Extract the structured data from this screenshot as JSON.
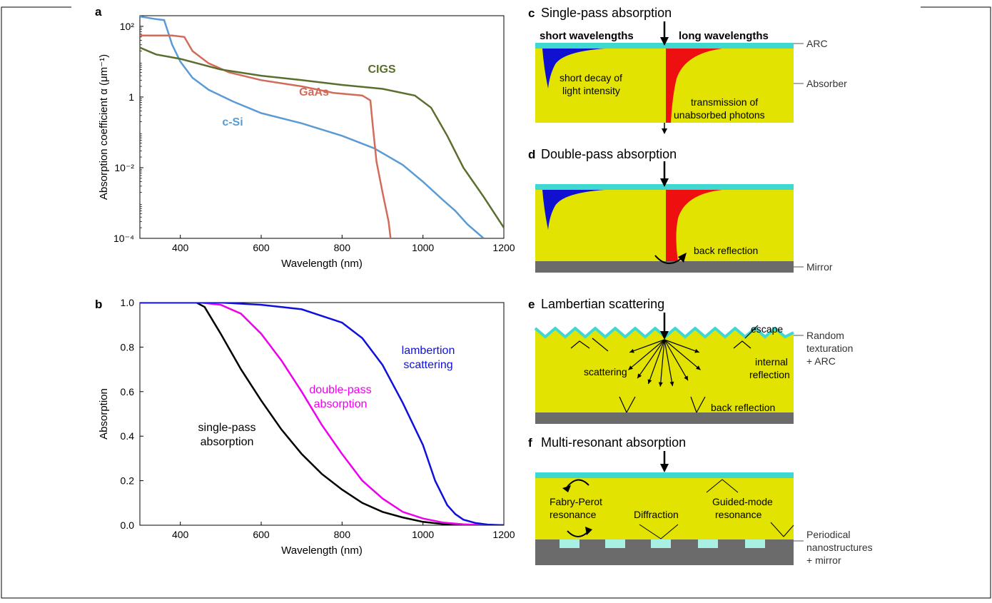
{
  "panels": {
    "a": {
      "letter": "a"
    },
    "b": {
      "letter": "b"
    },
    "c": {
      "letter": "c",
      "title": "Single-pass absorption",
      "short_label": "short wavelengths",
      "long_label": "long wavelengths",
      "decay_text": [
        "short decay of",
        "light intensity"
      ],
      "transmission_text": [
        "transmission of",
        "unabsorbed photons"
      ]
    },
    "d": {
      "letter": "d",
      "title": "Double-pass absorption",
      "back_reflection": "back reflection"
    },
    "e": {
      "letter": "e",
      "title": "Lambertian scattering",
      "escape": "escape",
      "scattering": "scattering",
      "internal_reflection": [
        "internal",
        "reflection"
      ],
      "back_reflection": "back reflection"
    },
    "f": {
      "letter": "f",
      "title": "Multi-resonant absorption",
      "fabry": [
        "Fabry-Perot",
        "resonance"
      ],
      "diffraction": "Diffraction",
      "guided": [
        "Guided-mode",
        "resonance"
      ]
    }
  },
  "side_labels": {
    "arc": "ARC",
    "absorber": "Absorber",
    "mirror": "Mirror",
    "random_texturation": [
      "Random",
      "texturation",
      "+ ARC"
    ],
    "periodical": [
      "Periodical",
      "nanostructures",
      "+ mirror"
    ]
  },
  "colors": {
    "absorber": "#e2e300",
    "arc": "#3fd8d0",
    "mirror": "#6b6b6b",
    "nano": "#a8f0e4",
    "short_wave": "#1010d0",
    "long_wave": "#ee1010"
  },
  "chart_data": [
    {
      "type": "line",
      "panel": "a",
      "xlabel": "Wavelength (nm)",
      "ylabel": "Absorption coefficient α (μm⁻¹)",
      "xlim": [
        300,
        1200
      ],
      "ylim": [
        0.0001,
        200
      ],
      "yscale": "log",
      "xticks": [
        400,
        600,
        800,
        1000,
        1200
      ],
      "yticks": [
        {
          "value": 100,
          "label": "10²"
        },
        {
          "value": 1,
          "label": "1"
        },
        {
          "value": 0.01,
          "label": "10⁻²"
        },
        {
          "value": 0.0001,
          "label": "10⁻⁴"
        }
      ],
      "series": [
        {
          "name": "c-Si",
          "color": "#5b9bd5",
          "x": [
            300,
            340,
            360,
            380,
            400,
            430,
            470,
            530,
            600,
            700,
            800,
            880,
            950,
            1000,
            1050,
            1080,
            1110,
            1150
          ],
          "y": [
            190,
            160,
            150,
            30,
            10,
            3.5,
            1.6,
            0.75,
            0.35,
            0.18,
            0.08,
            0.035,
            0.012,
            0.004,
            0.0012,
            0.0006,
            0.00025,
            0.0001
          ]
        },
        {
          "name": "GaAs",
          "color": "#d26b5a",
          "x": [
            300,
            380,
            410,
            430,
            470,
            520,
            600,
            700,
            780,
            850,
            870,
            875,
            885,
            900,
            915,
            920
          ],
          "y": [
            55,
            55,
            50,
            20,
            9,
            5,
            3,
            2,
            1.3,
            1.1,
            0.8,
            0.2,
            0.015,
            0.002,
            0.0003,
            0.0001
          ],
          "mark_shape": "line"
        },
        {
          "name": "CIGS",
          "color": "#5a6e2e",
          "x": [
            300,
            340,
            400,
            500,
            600,
            700,
            800,
            900,
            980,
            1020,
            1060,
            1100,
            1150,
            1200
          ],
          "y": [
            25,
            16,
            12,
            6,
            4,
            3,
            2.2,
            1.7,
            1.1,
            0.5,
            0.08,
            0.01,
            0.0015,
            0.0002
          ]
        }
      ]
    },
    {
      "type": "line",
      "panel": "b",
      "xlabel": "Wavelength (nm)",
      "ylabel": "Absorption",
      "xlim": [
        300,
        1200
      ],
      "ylim": [
        0,
        1
      ],
      "xticks": [
        400,
        600,
        800,
        1000,
        1200
      ],
      "yticks": [
        0.0,
        0.2,
        0.4,
        0.6,
        0.8,
        1.0
      ],
      "series": [
        {
          "name": "single-pass absorption",
          "color": "#000000",
          "x": [
            300,
            440,
            460,
            500,
            550,
            600,
            650,
            700,
            750,
            800,
            850,
            900,
            950,
            1000,
            1050,
            1100,
            1150,
            1200
          ],
          "y": [
            1.0,
            1.0,
            0.98,
            0.86,
            0.7,
            0.56,
            0.43,
            0.32,
            0.23,
            0.16,
            0.1,
            0.06,
            0.035,
            0.015,
            0.005,
            0.002,
            0.001,
            0.0
          ]
        },
        {
          "name": "double-pass absorption",
          "color": "#ee00ee",
          "x": [
            300,
            450,
            500,
            550,
            600,
            650,
            700,
            750,
            800,
            850,
            900,
            950,
            1000,
            1050,
            1100,
            1150,
            1200
          ],
          "y": [
            1.0,
            1.0,
            0.99,
            0.95,
            0.86,
            0.74,
            0.6,
            0.45,
            0.32,
            0.2,
            0.12,
            0.06,
            0.03,
            0.012,
            0.004,
            0.001,
            0.0
          ]
        },
        {
          "name": "lambertion scattering",
          "color": "#1010dd",
          "x": [
            300,
            500,
            600,
            700,
            800,
            850,
            900,
            950,
            1000,
            1030,
            1060,
            1080,
            1100,
            1130,
            1160,
            1200
          ],
          "y": [
            1.0,
            1.0,
            0.99,
            0.97,
            0.91,
            0.84,
            0.72,
            0.55,
            0.36,
            0.2,
            0.09,
            0.05,
            0.025,
            0.01,
            0.003,
            0.0
          ]
        }
      ]
    }
  ]
}
